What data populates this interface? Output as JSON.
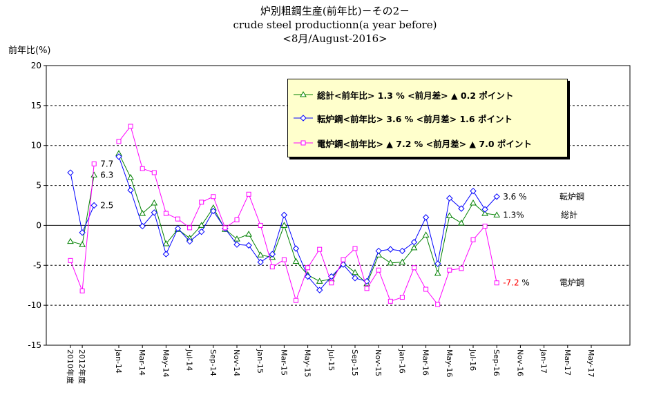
{
  "chart_data": {
    "type": "line",
    "title": "炉別粗鋼生産(前年比)－その2－",
    "subtitle": "crude steel productionn(a year before)",
    "subtitle2": "<8月/August-2016>",
    "ylabel": "前年比(%)",
    "ylim": [
      -15,
      20
    ],
    "yticks": [
      20,
      15,
      10,
      5,
      0,
      -5,
      -10,
      -15
    ],
    "x_tick_labels": [
      "2010年度",
      "2012年度",
      "Jan-14",
      "Mar-14",
      "May-14",
      "Jul-14",
      "Sep-14",
      "Nov-14",
      "Jan-15",
      "Mar-15",
      "May-15",
      "Jul-15",
      "Sep-15",
      "Nov-15",
      "Jan-16",
      "Mar-16",
      "May-16",
      "Jul-16",
      "Sep-16",
      "Nov-16",
      "Jan-17",
      "Mar-17",
      "May-17"
    ],
    "grid": "horizontal dashed",
    "series": [
      {
        "name": "総計",
        "color": "#008000",
        "marker": "triangle",
        "annual": [
          -2.0,
          -2.4,
          6.3
        ],
        "monthly": [
          9.0,
          6.0,
          1.5,
          2.8,
          -2.3,
          -0.5,
          -1.6,
          0.0,
          2.2,
          -0.5,
          -1.7,
          -1.1,
          -3.7,
          -4.0,
          0.0,
          -4.5,
          -6.2,
          -7.0,
          -6.7,
          -4.7,
          -5.9,
          -7.3,
          -3.7,
          -4.7,
          -4.6,
          -2.8,
          -1.2,
          -6.0,
          1.2,
          0.3,
          2.8,
          1.5,
          1.3
        ]
      },
      {
        "name": "転炉鋼",
        "color": "#0000ff",
        "marker": "diamond",
        "annual": [
          6.6,
          -0.9,
          2.5
        ],
        "monthly": [
          8.6,
          4.4,
          -0.1,
          1.6,
          -3.6,
          -0.4,
          -2.0,
          -0.8,
          1.8,
          -0.4,
          -2.4,
          -2.5,
          -4.6,
          -3.6,
          1.3,
          -2.9,
          -6.4,
          -8.1,
          -6.4,
          -4.9,
          -6.6,
          -7.0,
          -3.2,
          -3.0,
          -3.2,
          -2.1,
          1.0,
          -4.8,
          3.4,
          2.1,
          4.3,
          2.0,
          3.6
        ]
      },
      {
        "name": "電炉鋼",
        "color": "#ff00ff",
        "marker": "square",
        "annual": [
          -4.4,
          -8.2,
          7.7
        ],
        "monthly": [
          10.5,
          12.4,
          7.1,
          6.6,
          1.5,
          0.8,
          -0.3,
          2.9,
          3.6,
          -0.3,
          0.7,
          3.9,
          0.0,
          -5.2,
          -4.3,
          -9.4,
          -5.3,
          -3.0,
          -7.2,
          -4.3,
          -2.9,
          -7.9,
          -5.6,
          -9.5,
          -9.0,
          -5.3,
          -8.0,
          -9.9,
          -5.6,
          -5.4,
          -1.8,
          -0.1,
          -7.2
        ]
      }
    ],
    "annual_labels": {
      "totalRight": "6.3",
      "bofRight": "2.5",
      "eafRight": "7.7"
    },
    "end_labels": {
      "bof_value": "3.6",
      "bof_unit": "%",
      "bof_name": "転炉鋼",
      "total_value": "1.3%",
      "total_name": "総計",
      "eaf_value": "-7.2",
      "eaf_unit": "%",
      "eaf_name": "電炉鋼"
    },
    "legend": [
      {
        "text": "総計<前年比> 1.3 % <前月差> ▲ 0.2 ポイント",
        "series": "総計"
      },
      {
        "text": "転炉鋼<前年比> 3.6 % <前月差> 1.6 ポイント",
        "series": "転炉鋼"
      },
      {
        "text": "電炉鋼<前年比> ▲ 7.2 % <前月差> ▲ 7.0 ポイント",
        "series": "電炉鋼"
      }
    ],
    "legend_position": "top-center"
  }
}
